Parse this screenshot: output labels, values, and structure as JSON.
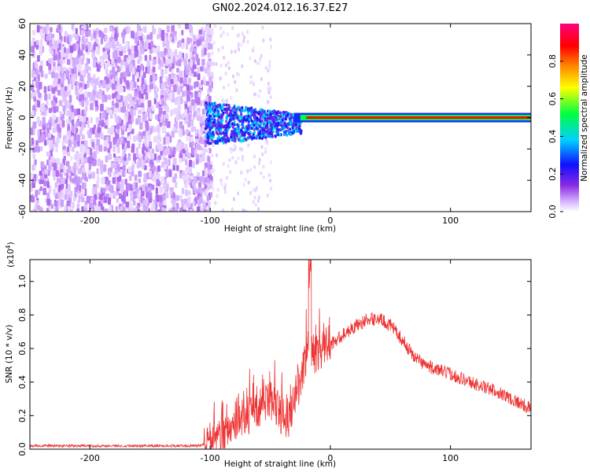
{
  "title": "GN02.2024.012.16.37.E27",
  "chart_data": [
    {
      "type": "heatmap",
      "name": "spectrogram",
      "xlabel": "Height of straight line (km)",
      "ylabel": "Frequency (Hz)",
      "xlim": [
        -250,
        167
      ],
      "ylim": [
        -60,
        60
      ],
      "xticks": [
        -200,
        -100,
        0,
        100
      ],
      "yticks": [
        -60,
        -40,
        -20,
        0,
        20,
        40,
        60
      ],
      "colorbar": {
        "label": "Normalized spectral amplitude",
        "range": [
          0,
          1
        ],
        "ticks": [
          0.0,
          0.2,
          0.4,
          0.6,
          0.8
        ],
        "colors": [
          "#ffffff",
          "#d9b8ff",
          "#8a2be2",
          "#1010ff",
          "#00d0ff",
          "#00ff40",
          "#ffff00",
          "#ff8000",
          "#ff0000",
          "#ff0080"
        ]
      },
      "regions": [
        {
          "description_x": [
            -250,
            -105
          ],
          "freq_range": [
            -60,
            60
          ],
          "amplitude": 0.1
        },
        {
          "description_x": [
            -105,
            -25
          ],
          "freq_range": [
            -15,
            10
          ],
          "amplitude": 0.35
        },
        {
          "description_x": [
            -25,
            0
          ],
          "freq_range": [
            -3,
            3
          ],
          "amplitude": 0.8
        },
        {
          "description_x": [
            0,
            167
          ],
          "freq_range": [
            -2,
            2
          ],
          "amplitude": 0.95
        }
      ]
    },
    {
      "type": "line",
      "name": "snr",
      "xlabel": "Height of straight line (km)",
      "ylabel": "SNR (10 * v/v)",
      "yscale_label": "(x10",
      "yscale_exp": "4",
      "yscale_close": ")",
      "xlim": [
        -250,
        167
      ],
      "ylim": [
        0,
        1.13
      ],
      "xticks": [
        -200,
        -100,
        0,
        100
      ],
      "yticks": [
        0.0,
        0.2,
        0.4,
        0.6,
        0.8,
        1.0
      ],
      "color": "#ee3333",
      "series_points": [
        [
          -250,
          0.02
        ],
        [
          -110,
          0.02
        ],
        [
          -100,
          0.04
        ],
        [
          -90,
          0.08
        ],
        [
          -80,
          0.15
        ],
        [
          -70,
          0.2
        ],
        [
          -60,
          0.22
        ],
        [
          -50,
          0.3
        ],
        [
          -45,
          0.25
        ],
        [
          -40,
          0.2
        ],
        [
          -35,
          0.18
        ],
        [
          -30,
          0.3
        ],
        [
          -25,
          0.4
        ],
        [
          -20,
          0.55
        ],
        [
          -17,
          0.62
        ],
        [
          -12,
          0.55
        ],
        [
          -8,
          0.58
        ],
        [
          -4,
          0.62
        ],
        [
          0,
          0.62
        ],
        [
          5,
          0.65
        ],
        [
          10,
          0.68
        ],
        [
          20,
          0.73
        ],
        [
          30,
          0.77
        ],
        [
          40,
          0.78
        ],
        [
          50,
          0.74
        ],
        [
          60,
          0.65
        ],
        [
          70,
          0.55
        ],
        [
          80,
          0.5
        ],
        [
          90,
          0.47
        ],
        [
          100,
          0.45
        ],
        [
          120,
          0.39
        ],
        [
          140,
          0.34
        ],
        [
          167,
          0.24
        ]
      ]
    }
  ]
}
